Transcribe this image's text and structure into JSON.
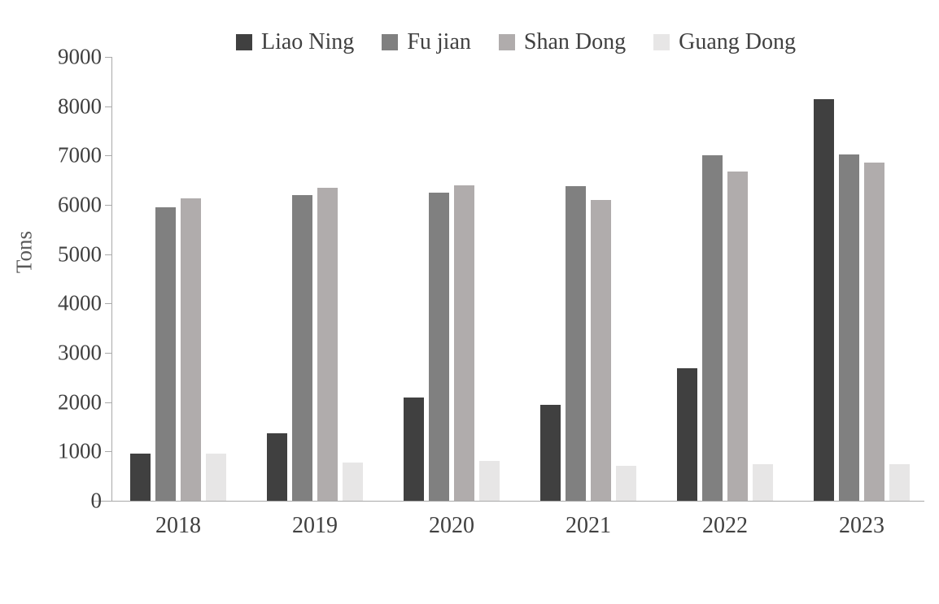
{
  "chart_data": {
    "type": "bar",
    "title": "",
    "xlabel": "",
    "ylabel": "Tons",
    "categories": [
      "2018",
      "2019",
      "2020",
      "2021",
      "2022",
      "2023"
    ],
    "series": [
      {
        "name": "Liao Ning",
        "color": "#404040",
        "values": [
          950,
          1370,
          2100,
          1940,
          2680,
          8140
        ]
      },
      {
        "name": "Fu jian",
        "color": "#808080",
        "values": [
          5950,
          6200,
          6250,
          6380,
          7000,
          7030
        ]
      },
      {
        "name": "Shan Dong",
        "color": "#b0acac",
        "values": [
          6130,
          6340,
          6390,
          6100,
          6680,
          6850
        ]
      },
      {
        "name": "Guang Dong",
        "color": "#e7e6e6",
        "values": [
          950,
          780,
          800,
          710,
          740,
          740
        ]
      }
    ],
    "ylim": [
      0,
      9000
    ],
    "ytick_step": 1000,
    "ytick_labels": [
      "0",
      "1000",
      "2000",
      "3000",
      "4000",
      "5000",
      "6000",
      "7000",
      "8000",
      "9000"
    ],
    "legend_position": "top",
    "grid": false,
    "axis_color": "#a9a9a9",
    "text_color": "#404040"
  }
}
